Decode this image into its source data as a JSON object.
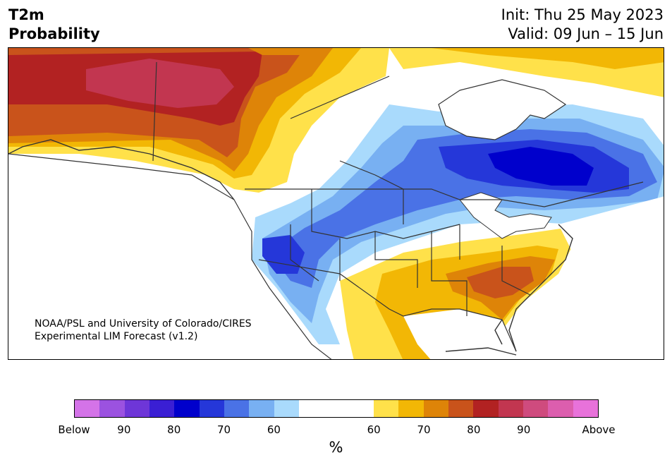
{
  "title": {
    "left_line1": "T2m",
    "left_line2": "Probability",
    "right_line1": "Init: Thu 25 May 2023",
    "right_line2": "Valid: 09 Jun – 15 Jun"
  },
  "credit": {
    "line1": "NOAA/PSL and University of Colorado/CIRES",
    "line2": "Experimental LIM Forecast (v1.2)"
  },
  "colorbar": {
    "below_colors": [
      "#d473e8",
      "#9b52e0",
      "#6e36d8",
      "#3a1fd4",
      "#0000cc",
      "#2537d9",
      "#4a72e6",
      "#78b0f2",
      "#a9dafc"
    ],
    "neutral_color": "#ffffff",
    "above_colors": [
      "#ffe14a",
      "#f2b705",
      "#de8408",
      "#c9531b",
      "#b22222",
      "#c23650",
      "#cf4b7e",
      "#dc5eae",
      "#e872da"
    ],
    "tick_labels": [
      "Below",
      "90",
      "80",
      "70",
      "60",
      "60",
      "70",
      "80",
      "90",
      "Above"
    ],
    "units": "%"
  },
  "map": {
    "region": "North America",
    "colors": {
      "land": "#ffffff",
      "border": "#333333"
    }
  }
}
